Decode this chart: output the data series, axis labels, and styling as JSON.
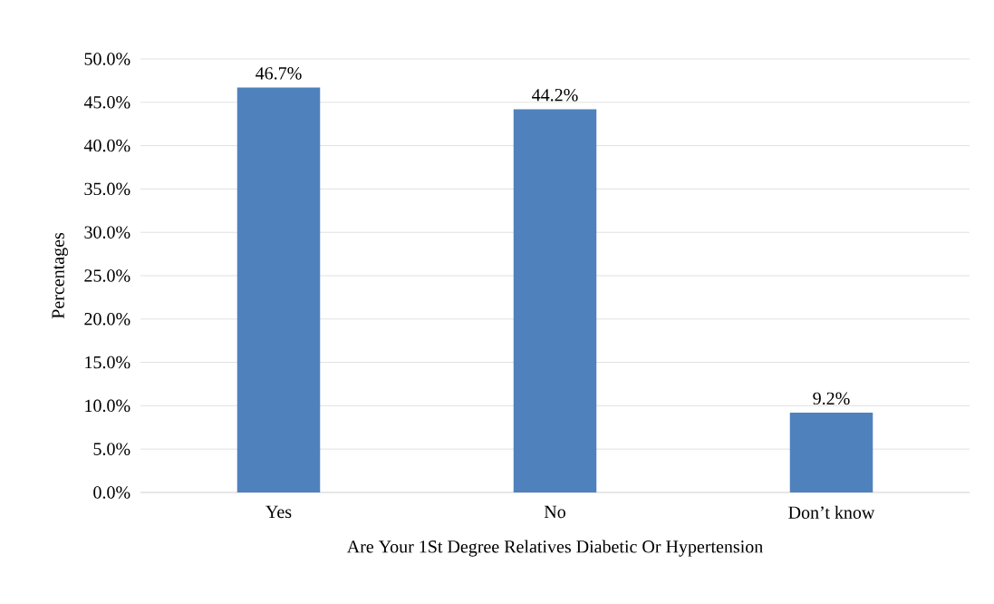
{
  "chart_data": {
    "type": "bar",
    "xlabel": "Are Your 1St Degree Relatives Diabetic Or Hypertension",
    "ylabel": "Percentages",
    "categories": [
      "Yes",
      "No",
      "Don’t know"
    ],
    "values": [
      46.7,
      44.2,
      9.2
    ],
    "value_labels": [
      "46.7%",
      "44.2%",
      "9.2%"
    ],
    "color": "#4f81bd",
    "ylim": [
      0,
      50
    ],
    "yticks": [
      {
        "value": 0,
        "label": "0.0%"
      },
      {
        "value": 5,
        "label": "5.0%"
      },
      {
        "value": 10,
        "label": "10.0%"
      },
      {
        "value": 15,
        "label": "15.0%"
      },
      {
        "value": 20,
        "label": "20.0%"
      },
      {
        "value": 25,
        "label": "25.0%"
      },
      {
        "value": 30,
        "label": "30.0%"
      },
      {
        "value": 35,
        "label": "35.0%"
      },
      {
        "value": 40,
        "label": "40.0%"
      },
      {
        "value": 45,
        "label": "45.0%"
      },
      {
        "value": 50,
        "label": "50.0%"
      }
    ],
    "grid": "y"
  }
}
